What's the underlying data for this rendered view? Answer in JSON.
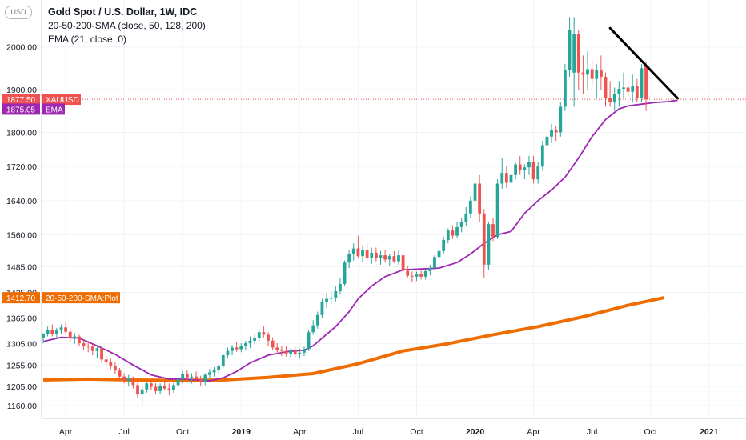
{
  "chart_data": {
    "type": "line",
    "title": "Gold Spot / U.S. Dollar, 1W, IDC",
    "currency_button": "USD",
    "indicators": [
      "20-50-200-SMA (close, 50, 128, 200)",
      "EMA (21, close, 0)"
    ],
    "symbol": "XAUUSD",
    "timeframe": "1W",
    "ylim": [
      1130,
      2110
    ],
    "y_ticks": [
      "2000.00",
      "1900.00",
      "1800.00",
      "1720.00",
      "1640.00",
      "1560.00",
      "1485.00",
      "1425.00",
      "1365.00",
      "1305.00",
      "1255.00",
      "1205.00",
      "1160.00"
    ],
    "y_tick_values": [
      2000,
      1900,
      1800,
      1720,
      1640,
      1560,
      1485,
      1425,
      1365,
      1305,
      1255,
      1205,
      1160
    ],
    "x_ticks": [
      "Apr",
      "Jul",
      "Oct",
      "2019",
      "Apr",
      "Jul",
      "Oct",
      "2020",
      "Apr",
      "Jul",
      "Oct",
      "2021"
    ],
    "x_tick_bold": [
      false,
      false,
      false,
      true,
      false,
      false,
      false,
      true,
      false,
      false,
      false,
      true
    ],
    "x_tick_weeks": [
      5,
      18,
      31,
      44,
      57,
      70,
      83,
      96,
      109,
      122,
      135,
      148
    ],
    "price_label": {
      "text": "1877.50",
      "name": "XAUUSD",
      "value": 1877.5,
      "color": "#ef5350"
    },
    "ema_label": {
      "text": "1875.05",
      "name": "EMA",
      "value": 1875.05,
      "color": "#9c27b0"
    },
    "sma_label": {
      "text": "1412.70",
      "name": "20-50-200-SMA:Plot",
      "value": 1412.7,
      "color": "#ef6c00"
    },
    "colors": {
      "up": "#26a69a",
      "down": "#ef5350",
      "ema": "#9c27b0",
      "sma": "#ef6c00",
      "trendline": "#000000"
    },
    "candles": [
      [
        1318,
        1330,
        1306,
        1327
      ],
      [
        1327,
        1345,
        1322,
        1338
      ],
      [
        1338,
        1350,
        1322,
        1327
      ],
      [
        1327,
        1342,
        1318,
        1336
      ],
      [
        1336,
        1350,
        1328,
        1343
      ],
      [
        1343,
        1357,
        1328,
        1333
      ],
      [
        1333,
        1342,
        1310,
        1318
      ],
      [
        1318,
        1330,
        1305,
        1322
      ],
      [
        1322,
        1326,
        1300,
        1306
      ],
      [
        1306,
        1314,
        1290,
        1300
      ],
      [
        1300,
        1312,
        1285,
        1298
      ],
      [
        1298,
        1304,
        1278,
        1288
      ],
      [
        1288,
        1300,
        1270,
        1294
      ],
      [
        1294,
        1298,
        1260,
        1268
      ],
      [
        1268,
        1276,
        1252,
        1262
      ],
      [
        1262,
        1270,
        1245,
        1252
      ],
      [
        1252,
        1262,
        1235,
        1242
      ],
      [
        1242,
        1248,
        1222,
        1228
      ],
      [
        1228,
        1236,
        1212,
        1218
      ],
      [
        1218,
        1232,
        1205,
        1224
      ],
      [
        1224,
        1228,
        1200,
        1208
      ],
      [
        1208,
        1214,
        1178,
        1186
      ],
      [
        1186,
        1205,
        1162,
        1198
      ],
      [
        1198,
        1216,
        1190,
        1212
      ],
      [
        1212,
        1220,
        1196,
        1204
      ],
      [
        1204,
        1212,
        1186,
        1194
      ],
      [
        1194,
        1212,
        1186,
        1206
      ],
      [
        1206,
        1220,
        1196,
        1200
      ],
      [
        1200,
        1212,
        1184,
        1196
      ],
      [
        1196,
        1214,
        1190,
        1208
      ],
      [
        1208,
        1226,
        1200,
        1222
      ],
      [
        1222,
        1240,
        1212,
        1234
      ],
      [
        1234,
        1242,
        1220,
        1226
      ],
      [
        1226,
        1236,
        1212,
        1228
      ],
      [
        1228,
        1240,
        1215,
        1222
      ],
      [
        1222,
        1230,
        1205,
        1216
      ],
      [
        1216,
        1236,
        1208,
        1232
      ],
      [
        1232,
        1246,
        1225,
        1238
      ],
      [
        1238,
        1250,
        1228,
        1244
      ],
      [
        1244,
        1258,
        1236,
        1252
      ],
      [
        1252,
        1282,
        1248,
        1278
      ],
      [
        1278,
        1296,
        1270,
        1288
      ],
      [
        1288,
        1302,
        1278,
        1296
      ],
      [
        1296,
        1310,
        1286,
        1292
      ],
      [
        1292,
        1306,
        1285,
        1300
      ],
      [
        1300,
        1312,
        1290,
        1306
      ],
      [
        1306,
        1322,
        1295,
        1312
      ],
      [
        1312,
        1326,
        1304,
        1318
      ],
      [
        1318,
        1340,
        1310,
        1332
      ],
      [
        1332,
        1346,
        1320,
        1326
      ],
      [
        1326,
        1332,
        1300,
        1312
      ],
      [
        1312,
        1320,
        1290,
        1296
      ],
      [
        1296,
        1306,
        1282,
        1290
      ],
      [
        1290,
        1300,
        1276,
        1288
      ],
      [
        1288,
        1298,
        1275,
        1282
      ],
      [
        1282,
        1294,
        1272,
        1290
      ],
      [
        1290,
        1298,
        1274,
        1280
      ],
      [
        1280,
        1294,
        1270,
        1284
      ],
      [
        1284,
        1298,
        1276,
        1292
      ],
      [
        1292,
        1336,
        1288,
        1332
      ],
      [
        1332,
        1360,
        1326,
        1348
      ],
      [
        1348,
        1380,
        1340,
        1372
      ],
      [
        1372,
        1410,
        1365,
        1402
      ],
      [
        1402,
        1424,
        1388,
        1410
      ],
      [
        1410,
        1428,
        1398,
        1412
      ],
      [
        1412,
        1440,
        1404,
        1428
      ],
      [
        1428,
        1460,
        1420,
        1445
      ],
      [
        1445,
        1500,
        1440,
        1495
      ],
      [
        1495,
        1525,
        1482,
        1515
      ],
      [
        1515,
        1540,
        1500,
        1528
      ],
      [
        1528,
        1558,
        1505,
        1510
      ],
      [
        1510,
        1535,
        1495,
        1524
      ],
      [
        1524,
        1540,
        1500,
        1505
      ],
      [
        1505,
        1530,
        1492,
        1518
      ],
      [
        1518,
        1530,
        1498,
        1506
      ],
      [
        1506,
        1522,
        1490,
        1512
      ],
      [
        1512,
        1524,
        1495,
        1502
      ],
      [
        1502,
        1516,
        1488,
        1510
      ],
      [
        1510,
        1522,
        1494,
        1498
      ],
      [
        1498,
        1525,
        1490,
        1512
      ],
      [
        1512,
        1520,
        1470,
        1476
      ],
      [
        1476,
        1488,
        1458,
        1464
      ],
      [
        1464,
        1474,
        1450,
        1462
      ],
      [
        1462,
        1474,
        1452,
        1468
      ],
      [
        1468,
        1476,
        1455,
        1462
      ],
      [
        1462,
        1478,
        1455,
        1475
      ],
      [
        1475,
        1490,
        1465,
        1482
      ],
      [
        1482,
        1512,
        1478,
        1508
      ],
      [
        1508,
        1528,
        1500,
        1522
      ],
      [
        1522,
        1556,
        1515,
        1548
      ],
      [
        1548,
        1575,
        1540,
        1570
      ],
      [
        1570,
        1582,
        1550,
        1558
      ],
      [
        1558,
        1590,
        1552,
        1578
      ],
      [
        1578,
        1600,
        1566,
        1590
      ],
      [
        1590,
        1625,
        1580,
        1610
      ],
      [
        1610,
        1650,
        1600,
        1640
      ],
      [
        1640,
        1690,
        1620,
        1680
      ],
      [
        1680,
        1700,
        1590,
        1610
      ],
      [
        1610,
        1620,
        1460,
        1490
      ],
      [
        1490,
        1590,
        1478,
        1585
      ],
      [
        1585,
        1600,
        1545,
        1555
      ],
      [
        1555,
        1690,
        1550,
        1680
      ],
      [
        1680,
        1740,
        1668,
        1705
      ],
      [
        1705,
        1720,
        1670,
        1682
      ],
      [
        1682,
        1708,
        1660,
        1700
      ],
      [
        1700,
        1730,
        1690,
        1725
      ],
      [
        1725,
        1745,
        1700,
        1712
      ],
      [
        1712,
        1725,
        1690,
        1718
      ],
      [
        1718,
        1745,
        1700,
        1730
      ],
      [
        1730,
        1745,
        1680,
        1690
      ],
      [
        1690,
        1730,
        1680,
        1720
      ],
      [
        1720,
        1780,
        1710,
        1770
      ],
      [
        1770,
        1800,
        1755,
        1790
      ],
      [
        1790,
        1820,
        1775,
        1805
      ],
      [
        1805,
        1815,
        1780,
        1800
      ],
      [
        1800,
        1870,
        1790,
        1860
      ],
      [
        1860,
        1960,
        1850,
        1945
      ],
      [
        1945,
        2070,
        1930,
        2040
      ],
      [
        1940,
        2070,
        1860,
        2030
      ],
      [
        2030,
        2040,
        1900,
        1940
      ],
      [
        1940,
        1980,
        1890,
        1935
      ],
      [
        1935,
        1990,
        1900,
        1948
      ],
      [
        1948,
        1970,
        1910,
        1925
      ],
      [
        1925,
        1960,
        1880,
        1945
      ],
      [
        1945,
        1980,
        1900,
        1930
      ],
      [
        1930,
        1940,
        1860,
        1880
      ],
      [
        1880,
        1920,
        1860,
        1870
      ],
      [
        1870,
        1905,
        1850,
        1890
      ],
      [
        1890,
        1920,
        1860,
        1902
      ],
      [
        1902,
        1940,
        1880,
        1905
      ],
      [
        1905,
        1928,
        1860,
        1895
      ],
      [
        1895,
        1935,
        1870,
        1908
      ],
      [
        1908,
        1925,
        1870,
        1880
      ],
      [
        1880,
        1960,
        1870,
        1950
      ],
      [
        1955,
        1965,
        1850,
        1877.5
      ]
    ],
    "ema_points": [
      [
        0,
        1310
      ],
      [
        4,
        1320
      ],
      [
        8,
        1318
      ],
      [
        12,
        1300
      ],
      [
        16,
        1280
      ],
      [
        20,
        1255
      ],
      [
        24,
        1232
      ],
      [
        28,
        1222
      ],
      [
        31,
        1222
      ],
      [
        34,
        1220
      ],
      [
        37,
        1218
      ],
      [
        40,
        1225
      ],
      [
        43,
        1240
      ],
      [
        46,
        1260
      ],
      [
        50,
        1278
      ],
      [
        54,
        1286
      ],
      [
        58,
        1290
      ],
      [
        60,
        1300
      ],
      [
        62,
        1318
      ],
      [
        65,
        1345
      ],
      [
        68,
        1380
      ],
      [
        70,
        1410
      ],
      [
        73,
        1440
      ],
      [
        76,
        1462
      ],
      [
        80,
        1478
      ],
      [
        84,
        1480
      ],
      [
        88,
        1482
      ],
      [
        92,
        1495
      ],
      [
        95,
        1515
      ],
      [
        98,
        1540
      ],
      [
        101,
        1560
      ],
      [
        104,
        1568
      ],
      [
        107,
        1610
      ],
      [
        110,
        1640
      ],
      [
        113,
        1665
      ],
      [
        116,
        1695
      ],
      [
        119,
        1740
      ],
      [
        122,
        1790
      ],
      [
        125,
        1830
      ],
      [
        128,
        1855
      ],
      [
        130,
        1862
      ],
      [
        133,
        1866
      ],
      [
        136,
        1870
      ],
      [
        139,
        1872
      ],
      [
        141,
        1875.05
      ]
    ],
    "sma_points": [
      [
        0,
        1220
      ],
      [
        10,
        1222
      ],
      [
        20,
        1220
      ],
      [
        30,
        1219
      ],
      [
        40,
        1220
      ],
      [
        50,
        1226
      ],
      [
        60,
        1235
      ],
      [
        70,
        1258
      ],
      [
        80,
        1288
      ],
      [
        90,
        1305
      ],
      [
        100,
        1326
      ],
      [
        110,
        1345
      ],
      [
        120,
        1368
      ],
      [
        130,
        1395
      ],
      [
        138,
        1412.7
      ]
    ],
    "trendline": [
      [
        126,
        2044
      ],
      [
        141,
        1880
      ]
    ]
  }
}
